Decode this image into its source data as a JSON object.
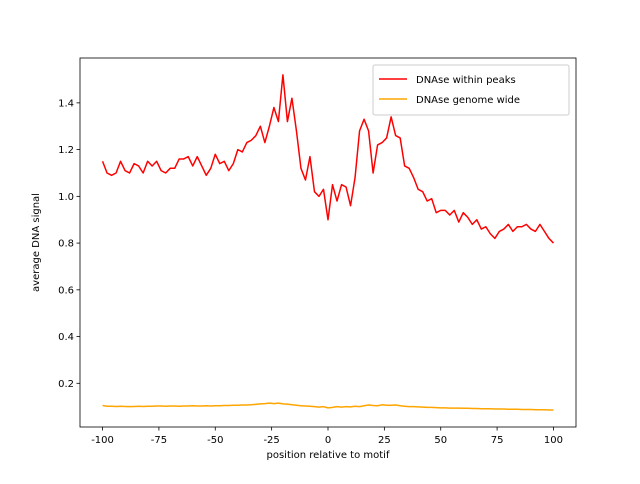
{
  "chart_data": {
    "type": "line",
    "xlabel": "position relative to motif",
    "ylabel": "average DNA signal",
    "x": [
      -100,
      -98,
      -96,
      -94,
      -92,
      -90,
      -88,
      -86,
      -84,
      -82,
      -80,
      -78,
      -76,
      -74,
      -72,
      -70,
      -68,
      -66,
      -64,
      -62,
      -60,
      -58,
      -56,
      -54,
      -52,
      -50,
      -48,
      -46,
      -44,
      -42,
      -40,
      -38,
      -36,
      -34,
      -32,
      -30,
      -28,
      -26,
      -24,
      -22,
      -20,
      -18,
      -16,
      -14,
      -12,
      -10,
      -8,
      -6,
      -4,
      -2,
      0,
      2,
      4,
      6,
      8,
      10,
      12,
      14,
      16,
      18,
      20,
      22,
      24,
      26,
      28,
      30,
      32,
      34,
      36,
      38,
      40,
      42,
      44,
      46,
      48,
      50,
      52,
      54,
      56,
      58,
      60,
      62,
      64,
      66,
      68,
      70,
      72,
      74,
      76,
      78,
      80,
      82,
      84,
      86,
      88,
      90,
      92,
      94,
      96,
      98,
      100
    ],
    "series": [
      {
        "name": "DNAse within peaks",
        "color": "#ff0000",
        "values": [
          1.15,
          1.1,
          1.09,
          1.1,
          1.15,
          1.11,
          1.1,
          1.14,
          1.13,
          1.1,
          1.15,
          1.13,
          1.15,
          1.11,
          1.1,
          1.12,
          1.12,
          1.16,
          1.16,
          1.17,
          1.13,
          1.17,
          1.13,
          1.09,
          1.12,
          1.18,
          1.14,
          1.15,
          1.11,
          1.14,
          1.2,
          1.19,
          1.23,
          1.24,
          1.26,
          1.3,
          1.23,
          1.3,
          1.38,
          1.32,
          1.52,
          1.32,
          1.42,
          1.28,
          1.12,
          1.07,
          1.17,
          1.02,
          1.0,
          1.03,
          0.9,
          1.05,
          0.98,
          1.05,
          1.04,
          0.96,
          1.08,
          1.28,
          1.33,
          1.28,
          1.1,
          1.22,
          1.23,
          1.25,
          1.34,
          1.26,
          1.25,
          1.13,
          1.12,
          1.08,
          1.03,
          1.02,
          0.98,
          0.99,
          0.93,
          0.94,
          0.94,
          0.92,
          0.94,
          0.89,
          0.93,
          0.91,
          0.88,
          0.9,
          0.86,
          0.87,
          0.84,
          0.82,
          0.85,
          0.86,
          0.88,
          0.85,
          0.87,
          0.87,
          0.88,
          0.86,
          0.85,
          0.88,
          0.85,
          0.82,
          0.8
        ]
      },
      {
        "name": "DNAse genome wide",
        "color": "#ffa500",
        "values": [
          0.105,
          0.102,
          0.102,
          0.101,
          0.102,
          0.101,
          0.1,
          0.101,
          0.102,
          0.101,
          0.102,
          0.102,
          0.103,
          0.103,
          0.102,
          0.103,
          0.103,
          0.102,
          0.103,
          0.103,
          0.104,
          0.103,
          0.103,
          0.104,
          0.103,
          0.104,
          0.104,
          0.105,
          0.105,
          0.106,
          0.106,
          0.107,
          0.107,
          0.108,
          0.11,
          0.112,
          0.113,
          0.115,
          0.113,
          0.115,
          0.112,
          0.111,
          0.108,
          0.106,
          0.104,
          0.103,
          0.102,
          0.1,
          0.098,
          0.1,
          0.095,
          0.097,
          0.1,
          0.098,
          0.1,
          0.099,
          0.102,
          0.1,
          0.104,
          0.107,
          0.105,
          0.104,
          0.108,
          0.106,
          0.106,
          0.107,
          0.104,
          0.102,
          0.1,
          0.1,
          0.099,
          0.098,
          0.097,
          0.097,
          0.096,
          0.095,
          0.095,
          0.094,
          0.094,
          0.094,
          0.093,
          0.093,
          0.092,
          0.092,
          0.091,
          0.091,
          0.091,
          0.09,
          0.09,
          0.09,
          0.089,
          0.089,
          0.089,
          0.088,
          0.088,
          0.088,
          0.087,
          0.087,
          0.087,
          0.086,
          0.086
        ]
      }
    ],
    "xlim": [
      -110,
      110
    ],
    "xticks": [
      -100,
      -75,
      -50,
      -25,
      0,
      25,
      50,
      75,
      100
    ],
    "ylim": [
      0.013,
      1.592
    ],
    "yticks": [
      0.2,
      0.4,
      0.6,
      0.8,
      {
        "value": 1.0,
        "label": "1.0"
      },
      1.2,
      1.4
    ],
    "legend": "upper right",
    "grid": false
  }
}
